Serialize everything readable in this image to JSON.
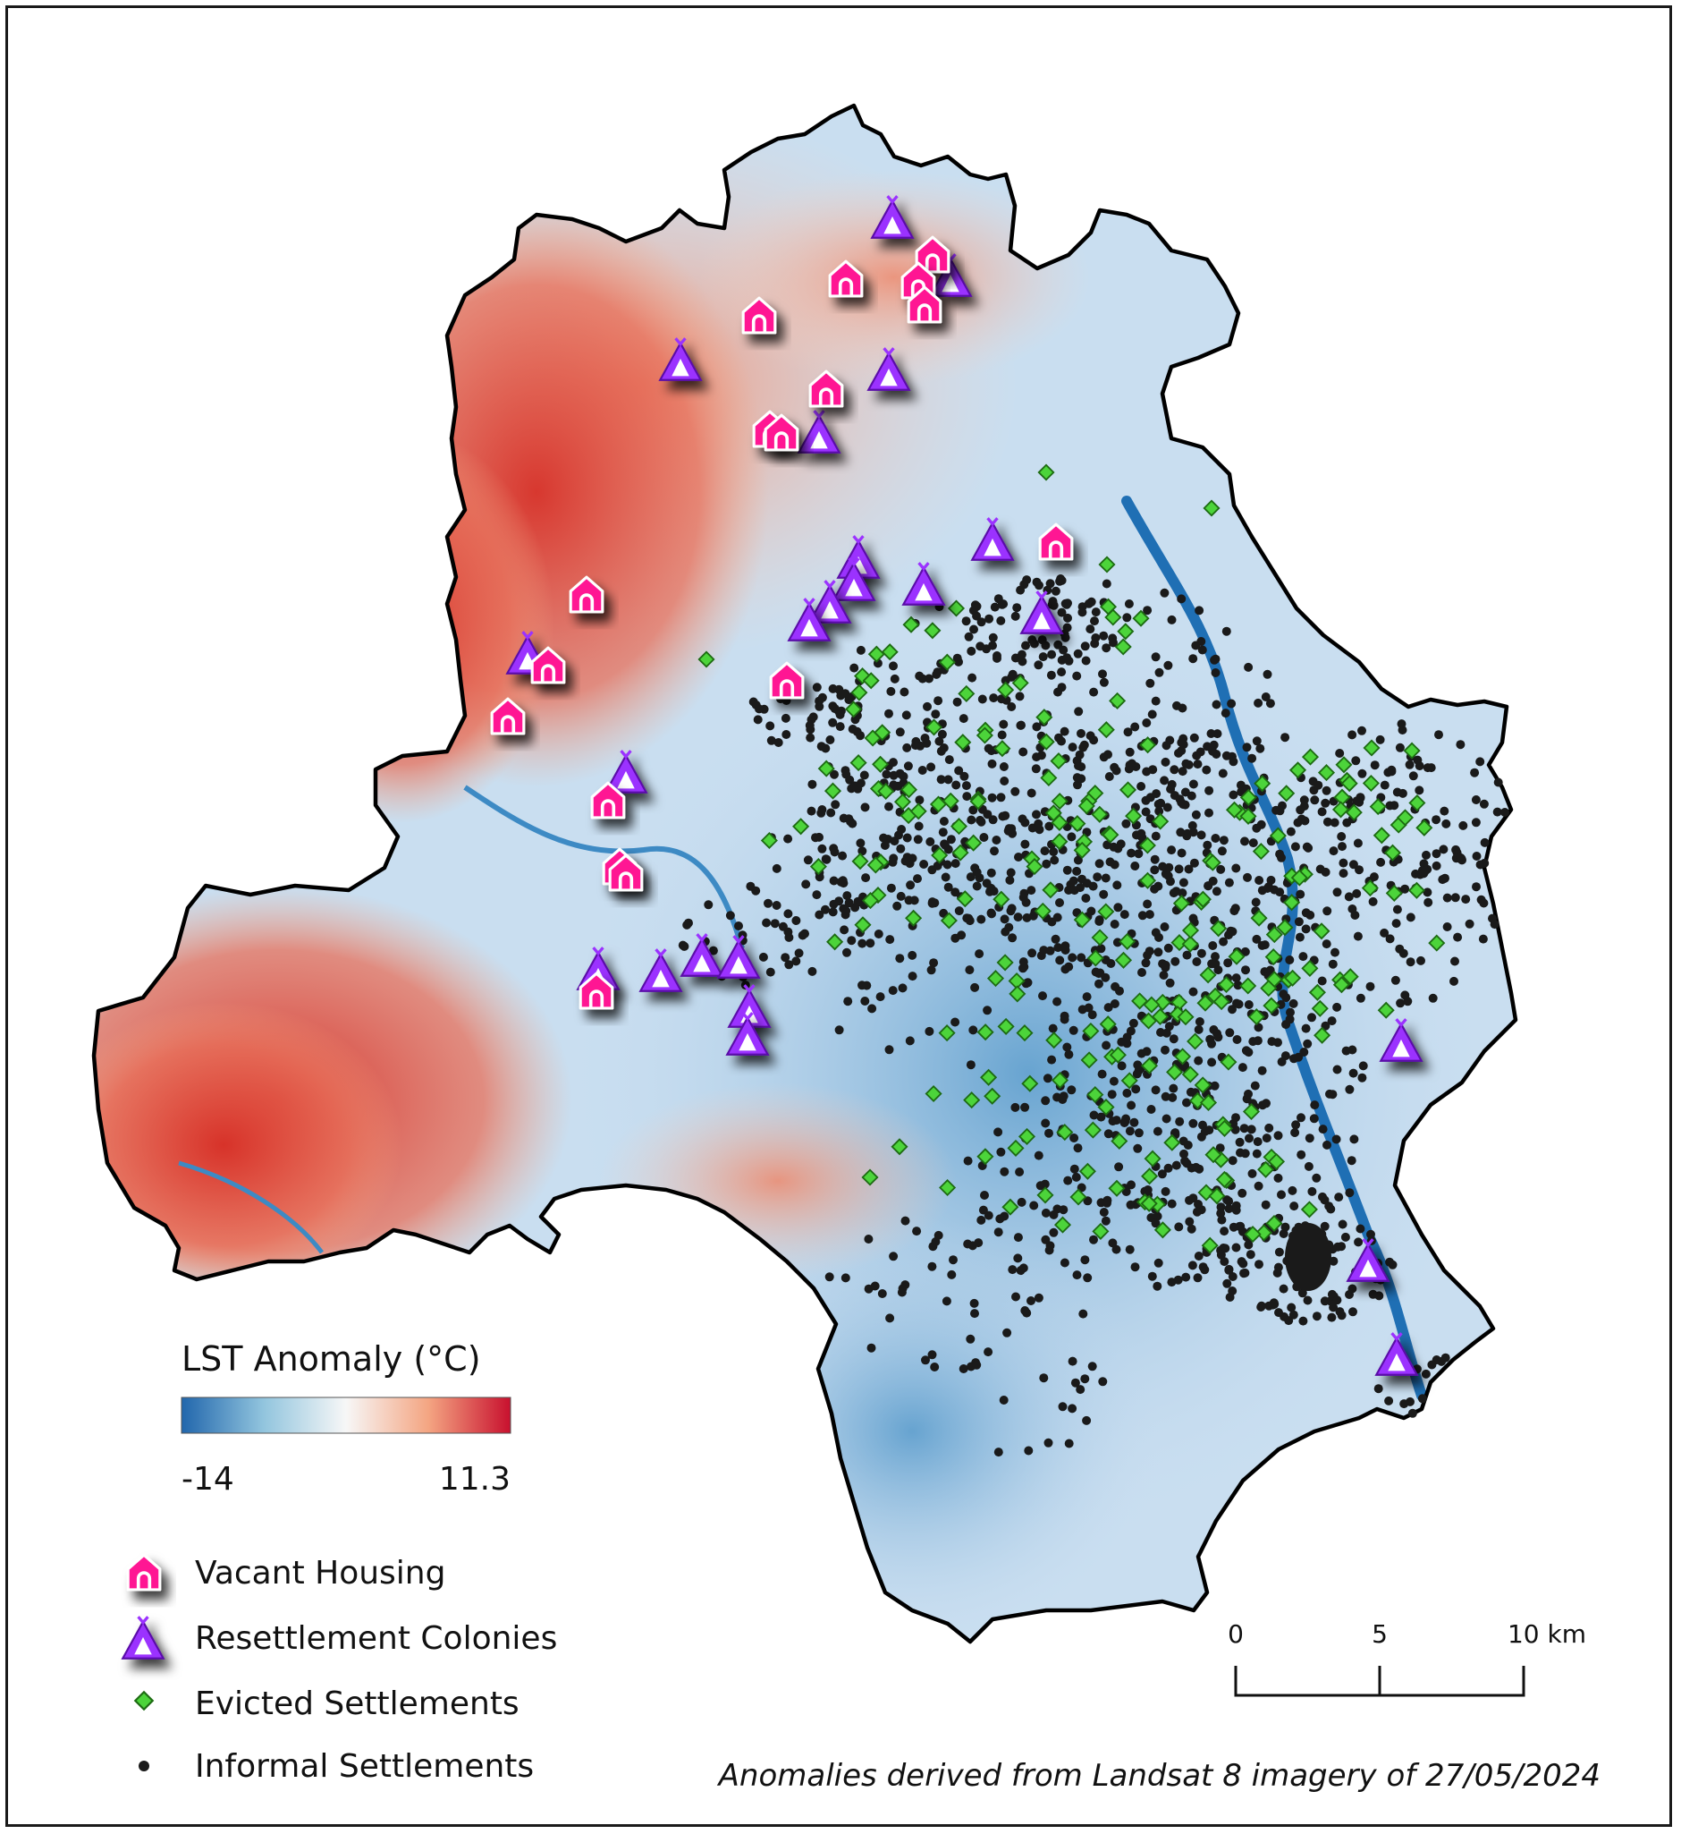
{
  "colors": {
    "anomaly_low": "#2166ac",
    "anomaly_mid": "#f7f7f7",
    "anomaly_high": "#c8102e",
    "vacant_housing": "#ff1493",
    "resettlement": "#9b30ff",
    "evicted": "#39c839",
    "informal": "#1a1a1a",
    "boundary": "#000000"
  },
  "legend": {
    "colorbar_title": "LST Anomaly (°C)",
    "min_label": "-14",
    "max_label": "11.3",
    "items": [
      {
        "label": "Vacant Housing",
        "icon": "house-icon"
      },
      {
        "label": "Resettlement Colonies",
        "icon": "tent-icon"
      },
      {
        "label": "Evicted Settlements",
        "icon": "diamond-icon"
      },
      {
        "label": "Informal Settlements",
        "icon": "dot-icon"
      }
    ]
  },
  "scale_bar": {
    "labels": [
      "0",
      "5",
      "10 km"
    ]
  },
  "credit": "Anomalies derived from Landsat 8 imagery of 27/05/2024"
}
